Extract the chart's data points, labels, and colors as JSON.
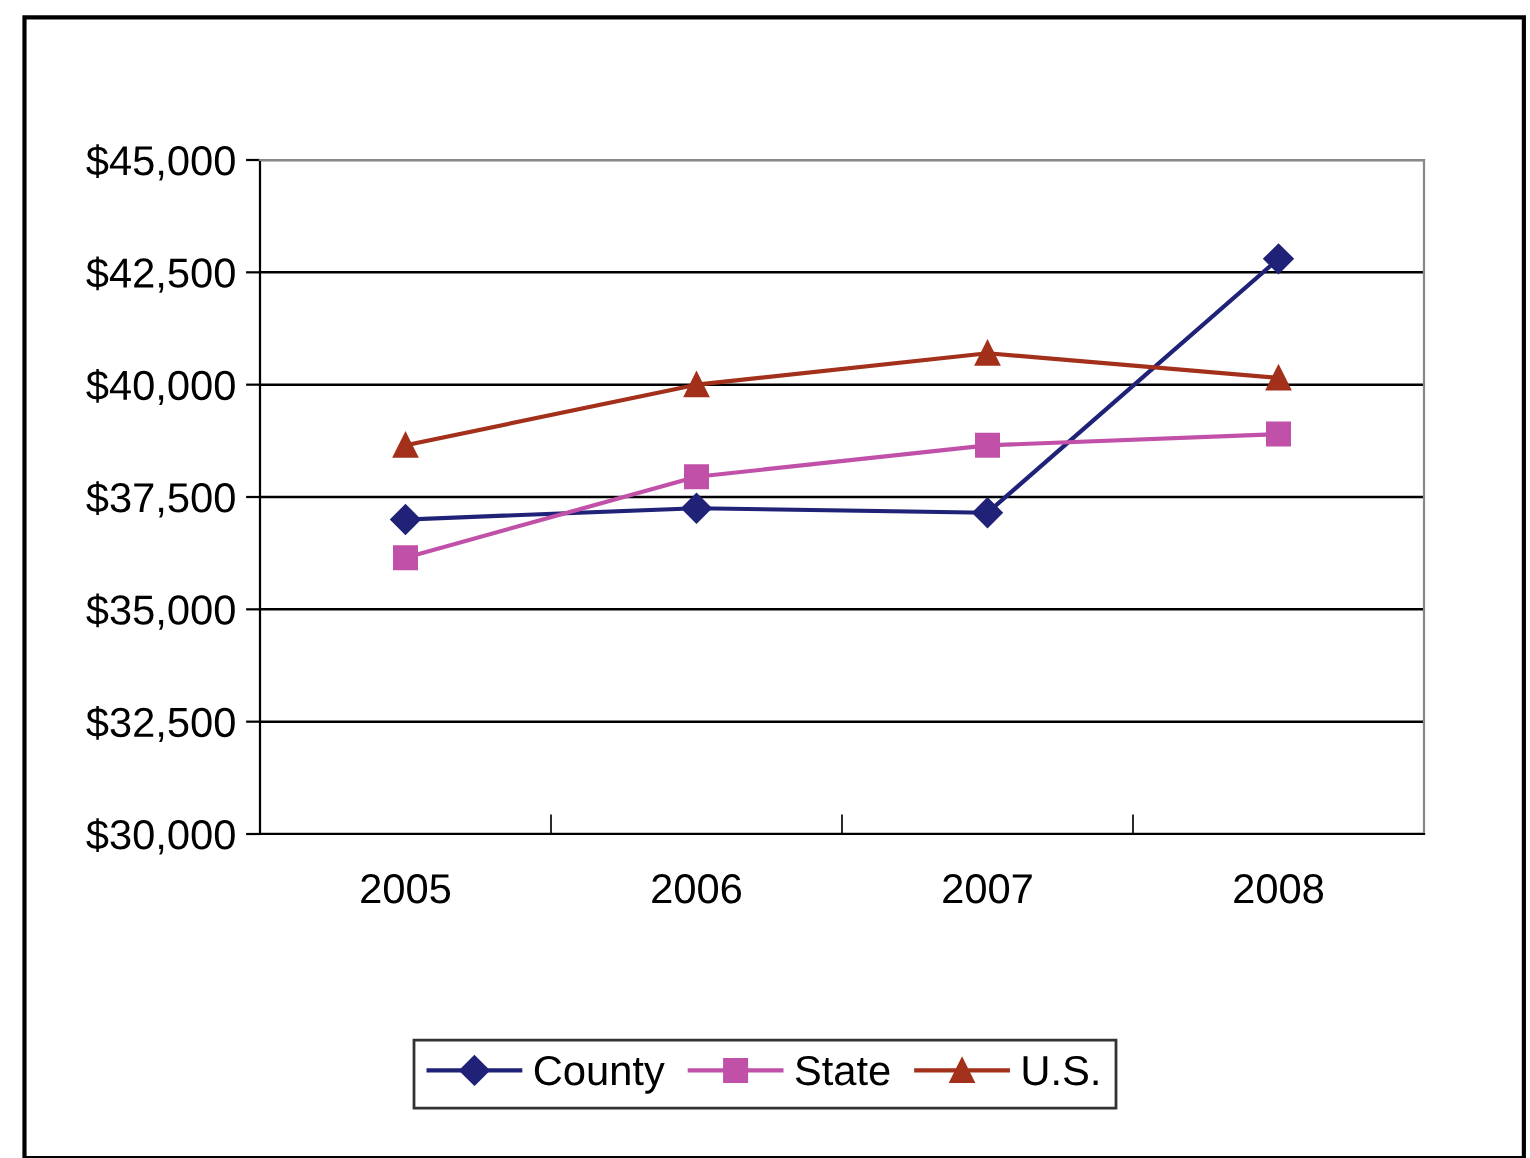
{
  "chart_data": {
    "type": "line",
    "categories": [
      "2005",
      "2006",
      "2007",
      "2008"
    ],
    "series": [
      {
        "name": "County",
        "color": "#1f2277",
        "values": [
          37000,
          37250,
          37150,
          42800
        ],
        "marker": "diamond"
      },
      {
        "name": "State",
        "color": "#c050a8",
        "values": [
          36150,
          37950,
          38650,
          38900
        ],
        "marker": "square"
      },
      {
        "name": "U.S.",
        "color": "#a3301a",
        "values": [
          38650,
          40000,
          40700,
          40150
        ],
        "marker": "triangle"
      }
    ],
    "ylim": [
      30000,
      45000
    ],
    "yticks": [
      {
        "value": 30000,
        "label": "$30,000"
      },
      {
        "value": 32500,
        "label": "$32,500"
      },
      {
        "value": 35000,
        "label": "$35,000"
      },
      {
        "value": 37500,
        "label": "$37,500"
      },
      {
        "value": 40000,
        "label": "$40,000"
      },
      {
        "value": 42500,
        "label": "$42,500"
      },
      {
        "value": 45000,
        "label": "$45,000"
      }
    ],
    "grid": "y",
    "legend": "bottom",
    "line_style": "solid"
  }
}
